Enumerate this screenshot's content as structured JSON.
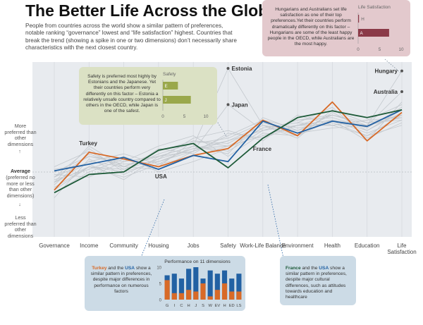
{
  "title": "The Better Life Across the Globe",
  "intro": "People from countries across the world show a similar pattern of preferences, notable ranking “governance” lowest and “life satisfaction” highest. Countries that break the trend (showing a spike in one or two dimensions) don’t necessarily share characteristics with the next closest country.",
  "y_axis": {
    "top_label": "More preferred than other dimensions",
    "mid_bold": "Average",
    "mid_label": "(preferred no more or less than other dimensions)",
    "bottom_label": "Less preferred than other dimensions"
  },
  "callouts": {
    "safety": {
      "text": "Safety is preferred most highly by Estonians and the Japanese. Yet their countries perform very differently on this factor – Estonia a relatively unsafe country compared to others in the OECD, while Japan is one of the safest.",
      "chart_title": "Safety",
      "ticks": [
        "0",
        "5",
        "10"
      ]
    },
    "life": {
      "text": "Hungarians and Australians set life satisfaction as one of their top preferences.Yet their countries perform dramatically differently on this factor – Hungarians are some of the least happy people in the OECD, while Australians are the most happy.",
      "chart_title": "Life Satisfaction",
      "ticks": [
        "0",
        "5",
        "10"
      ]
    },
    "turkey": {
      "country_a": "Turkey",
      "and": " and the ",
      "country_b": "USA",
      "text": " show a similar pattern in preferences, despite major differences in performance on numerous factors",
      "chart_title": "Performance on 11 dimensions",
      "y_ticks": [
        "0",
        "5",
        "10"
      ]
    },
    "france": {
      "country_a": "France",
      "and": " and the ",
      "country_b": "USA",
      "text": " show a similar pattern in preferences, despite major cultural differences, such as attitudes towards education and healthcare"
    }
  },
  "colors": {
    "turkey": "#d86a27",
    "usa": "#2261a3",
    "france": "#1d5a38",
    "background_lines": "#c3c8cd",
    "plot_bg": "#e8ebef",
    "safety_bar": "#9aa84b",
    "life_bar": "#8b3a48"
  },
  "chart_data": [
    {
      "type": "line",
      "categories": [
        "Governance",
        "Income",
        "Community",
        "Housing",
        "Jobs",
        "Safety",
        "Work-Life Balance",
        "Environment",
        "Health",
        "Education",
        "Life Satisfaction"
      ],
      "ylim": [
        -1.6,
        1.6
      ],
      "y_ticks": [],
      "series": [
        {
          "name": "Turkey",
          "highlight": true,
          "values": [
            -0.75,
            -0.02,
            -0.15,
            -0.3,
            -0.08,
            0.05,
            0.6,
            0.3,
            0.95,
            0.2,
            0.75
          ]
        },
        {
          "name": "USA",
          "highlight": true,
          "values": [
            -0.38,
            -0.25,
            -0.12,
            -0.35,
            -0.08,
            -0.2,
            0.58,
            0.35,
            0.58,
            0.48,
            0.8
          ]
        },
        {
          "name": "France",
          "highlight": true,
          "values": [
            -0.8,
            -0.45,
            -0.4,
            0.02,
            0.15,
            -0.32,
            0.25,
            0.65,
            0.78,
            0.65,
            0.8
          ]
        },
        {
          "name": "Estonia",
          "values": [
            -0.5,
            -0.2,
            -0.3,
            -0.1,
            0.1,
            1.6,
            0.5,
            0.3,
            0.6,
            0.4,
            0.8
          ]
        },
        {
          "name": "Japan",
          "values": [
            -0.6,
            -0.3,
            -0.4,
            -0.2,
            0.0,
            0.9,
            0.4,
            0.5,
            0.5,
            0.3,
            0.7
          ]
        },
        {
          "name": "Hungary",
          "values": [
            -0.6,
            0.1,
            -0.3,
            0.0,
            0.2,
            0.1,
            0.3,
            0.5,
            0.6,
            0.5,
            1.55
          ]
        },
        {
          "name": "Australia",
          "values": [
            -0.5,
            -0.1,
            -0.2,
            -0.1,
            0.0,
            0.2,
            0.4,
            0.6,
            0.7,
            0.5,
            1.15
          ]
        },
        {
          "name": "",
          "values": [
            -0.4,
            -0.1,
            -0.25,
            -0.2,
            0.05,
            0.2,
            0.5,
            0.4,
            0.6,
            0.35,
            0.6
          ]
        },
        {
          "name": "",
          "values": [
            -0.7,
            -0.3,
            -0.5,
            -0.25,
            -0.1,
            0.1,
            0.3,
            0.5,
            0.7,
            0.55,
            0.7
          ]
        },
        {
          "name": "",
          "values": [
            -0.3,
            0.0,
            -0.35,
            -0.05,
            0.15,
            0.25,
            0.55,
            0.35,
            0.45,
            0.5,
            0.65
          ]
        },
        {
          "name": "",
          "values": [
            -0.55,
            -0.35,
            -0.1,
            -0.4,
            -0.2,
            0.05,
            0.45,
            0.55,
            0.85,
            0.25,
            0.55
          ]
        },
        {
          "name": "",
          "values": [
            -0.9,
            -0.15,
            -0.45,
            -0.15,
            0.25,
            0.4,
            0.2,
            0.7,
            0.5,
            0.6,
            0.9
          ]
        },
        {
          "name": "",
          "values": [
            -0.45,
            -0.5,
            -0.2,
            0.1,
            0.3,
            -0.1,
            0.35,
            0.3,
            0.75,
            0.4,
            0.75
          ]
        },
        {
          "name": "",
          "values": [
            -0.65,
            -0.05,
            -0.3,
            -0.35,
            0.0,
            0.3,
            0.6,
            0.45,
            0.55,
            0.3,
            0.5
          ]
        },
        {
          "name": "",
          "values": [
            -0.35,
            -0.25,
            -0.55,
            -0.1,
            0.1,
            0.0,
            0.4,
            0.6,
            0.65,
            0.45,
            0.85
          ]
        },
        {
          "name": "",
          "values": [
            -0.8,
            -0.4,
            -0.15,
            -0.3,
            0.2,
            0.15,
            0.5,
            0.25,
            0.8,
            0.55,
            0.6
          ]
        },
        {
          "name": "",
          "values": [
            -0.5,
            0.05,
            -0.4,
            0.05,
            -0.05,
            0.35,
            0.25,
            0.5,
            0.6,
            0.2,
            0.95
          ]
        },
        {
          "name": "",
          "values": [
            -0.6,
            -0.2,
            -0.05,
            -0.25,
            0.1,
            -0.05,
            0.65,
            0.4,
            0.7,
            0.5,
            0.7
          ]
        },
        {
          "name": "",
          "values": [
            -0.75,
            -0.3,
            -0.35,
            -0.15,
            0.05,
            0.1,
            0.45,
            0.55,
            0.5,
            0.6,
            0.65
          ]
        }
      ],
      "point_labels": [
        {
          "text": "Estonia",
          "series": "Estonia",
          "category": "Safety"
        },
        {
          "text": "Japan",
          "series": "Japan",
          "category": "Safety"
        },
        {
          "text": "Hungary",
          "series": "Hungary",
          "category": "Life Satisfaction"
        },
        {
          "text": "Australia",
          "series": "Australia",
          "category": "Life Satisfaction"
        }
      ],
      "series_labels": [
        {
          "text": "Turkey",
          "series": "Turkey",
          "category": "Income"
        },
        {
          "text": "USA",
          "series": "USA",
          "category": "Housing"
        },
        {
          "text": "France",
          "series": "France",
          "category": "Work-Life Balance"
        }
      ]
    },
    {
      "type": "bar",
      "title": "Safety",
      "categories": [
        "E",
        "J"
      ],
      "values": [
        3.5,
        6.5
      ],
      "xlim": [
        0,
        10
      ]
    },
    {
      "type": "bar",
      "title": "Life Satisfaction",
      "categories": [
        "H",
        "A"
      ],
      "values": [
        0.2,
        7.2
      ],
      "xlim": [
        0,
        10
      ]
    },
    {
      "type": "bar",
      "title": "Performance on 11 dimensions",
      "categories": [
        "G",
        "I",
        "C",
        "H",
        "J",
        "S",
        "W",
        "EV",
        "H",
        "ED",
        "LS"
      ],
      "ylim": [
        0,
        10
      ],
      "series": [
        {
          "name": "USA",
          "values": [
            7.5,
            8.0,
            6.5,
            9.5,
            10.0,
            6.5,
            9.0,
            8.0,
            9.0,
            6.5,
            8.0
          ]
        },
        {
          "name": "Turkey",
          "values": [
            6.0,
            2.0,
            2.0,
            3.0,
            2.5,
            5.0,
            1.0,
            3.0,
            5.0,
            2.5,
            2.5
          ]
        }
      ]
    }
  ]
}
